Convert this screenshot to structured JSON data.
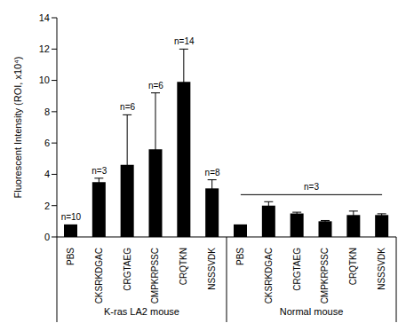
{
  "chart_data": {
    "type": "bar",
    "ylabel": "Fluorescent Intensity (ROI, x10⁴)",
    "color": "#000000",
    "ylim": [
      0,
      14
    ],
    "yticks": [
      0,
      2,
      4,
      6,
      8,
      10,
      12,
      14
    ],
    "groups": [
      {
        "label": "K-ras LA2 mouse",
        "categories": [
          "PBS",
          "CKSRKDGAC",
          "CRGTAEG",
          "CMPKRPSSC",
          "CRQTKN",
          "NSSSVDK"
        ],
        "values": [
          0.8,
          3.5,
          4.6,
          5.6,
          9.9,
          3.1
        ],
        "errors": [
          null,
          0.25,
          3.2,
          3.6,
          2.1,
          0.55
        ],
        "n_labels": [
          "n=10",
          "n=3",
          "n=6",
          "n=6",
          "n=14",
          "n=8"
        ]
      },
      {
        "label": "Normal mouse",
        "categories": [
          "PBS",
          "CKSRKDGAC",
          "CRGTAEG",
          "CMPKRPSSC",
          "CRQTKN",
          "NSSSVDK"
        ],
        "values": [
          0.8,
          2.0,
          1.5,
          1.0,
          1.4,
          1.4
        ],
        "errors": [
          null,
          0.25,
          0.08,
          0.05,
          0.25,
          0.08
        ],
        "n_label": "n=3"
      }
    ]
  }
}
